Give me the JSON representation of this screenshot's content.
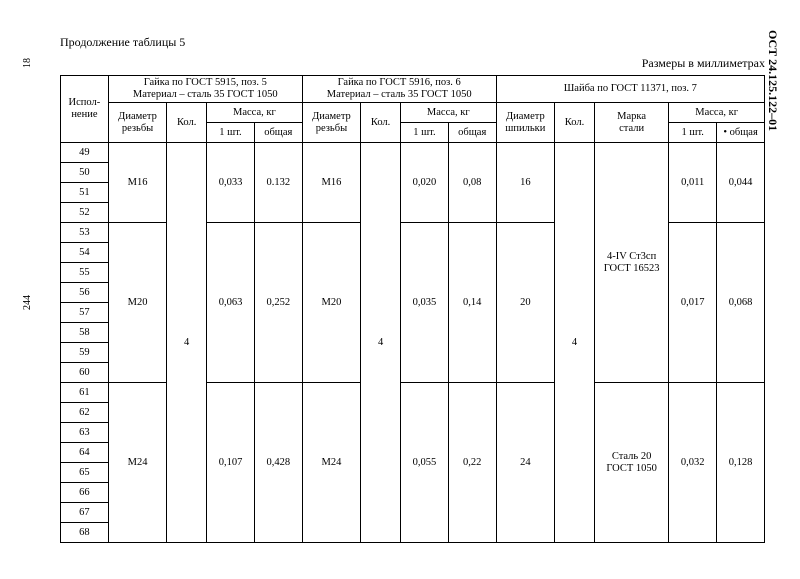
{
  "doc_id": "ОСТ 24.125.122–01",
  "page_top": "18",
  "page_side": "244",
  "caption": "Продолжение  таблицы  5",
  "units": "Размеры в миллиметрах",
  "head": {
    "c0": "Испол-\nнение",
    "g1a": "Гайка по ГОСТ 5915, поз. 5",
    "g1b": "Материал – сталь 35 ГОСТ 1050",
    "g2a": "Гайка по ГОСТ 5916, поз. 6",
    "g2b": "Материал –  сталь 35 ГОСТ 1050",
    "g3": "Шайба по ГОСТ 11371, поз. 7",
    "diam": "Диаметр\nрезьбы",
    "diam_sh": "Диаметр\nшпильки",
    "kol": "Кол.",
    "mass": "Масса, кг",
    "marka": "Марка\nстали",
    "m1": "1 шт.",
    "m2": "общая",
    "m2d": "• общая"
  },
  "rows": [
    49,
    50,
    51,
    52,
    53,
    54,
    55,
    56,
    57,
    58,
    59,
    60,
    61,
    62,
    63,
    64,
    65,
    66,
    67,
    68
  ],
  "blocks": [
    {
      "span": 4,
      "d1": "М16",
      "m1a": "0,033",
      "m1b": "0.132",
      "d2": "М16",
      "m2a": "0,020",
      "m2b": "0,08",
      "d3": "16",
      "m3a": "0,011",
      "m3b": "0,044"
    },
    {
      "span": 8,
      "d1": "М20",
      "m1a": "0,063",
      "m1b": "0,252",
      "d2": "М20",
      "m2a": "0,035",
      "m2b": "0,14",
      "d3": "20",
      "m3a": "0,017",
      "m3b": "0,068"
    },
    {
      "span": 8,
      "d1": "М24",
      "m1a": "0,107",
      "m1b": "0,428",
      "d2": "М24",
      "m2a": "0,055",
      "m2b": "0,22",
      "d3": "24",
      "m3a": "0,032",
      "m3b": "0,128"
    }
  ],
  "kol_all": "4",
  "steel": [
    {
      "span": 12,
      "text": "4-IV Ст3сп\nГОСТ 16523"
    },
    {
      "span": 8,
      "text": "Сталь 20\nГОСТ 1050"
    }
  ]
}
